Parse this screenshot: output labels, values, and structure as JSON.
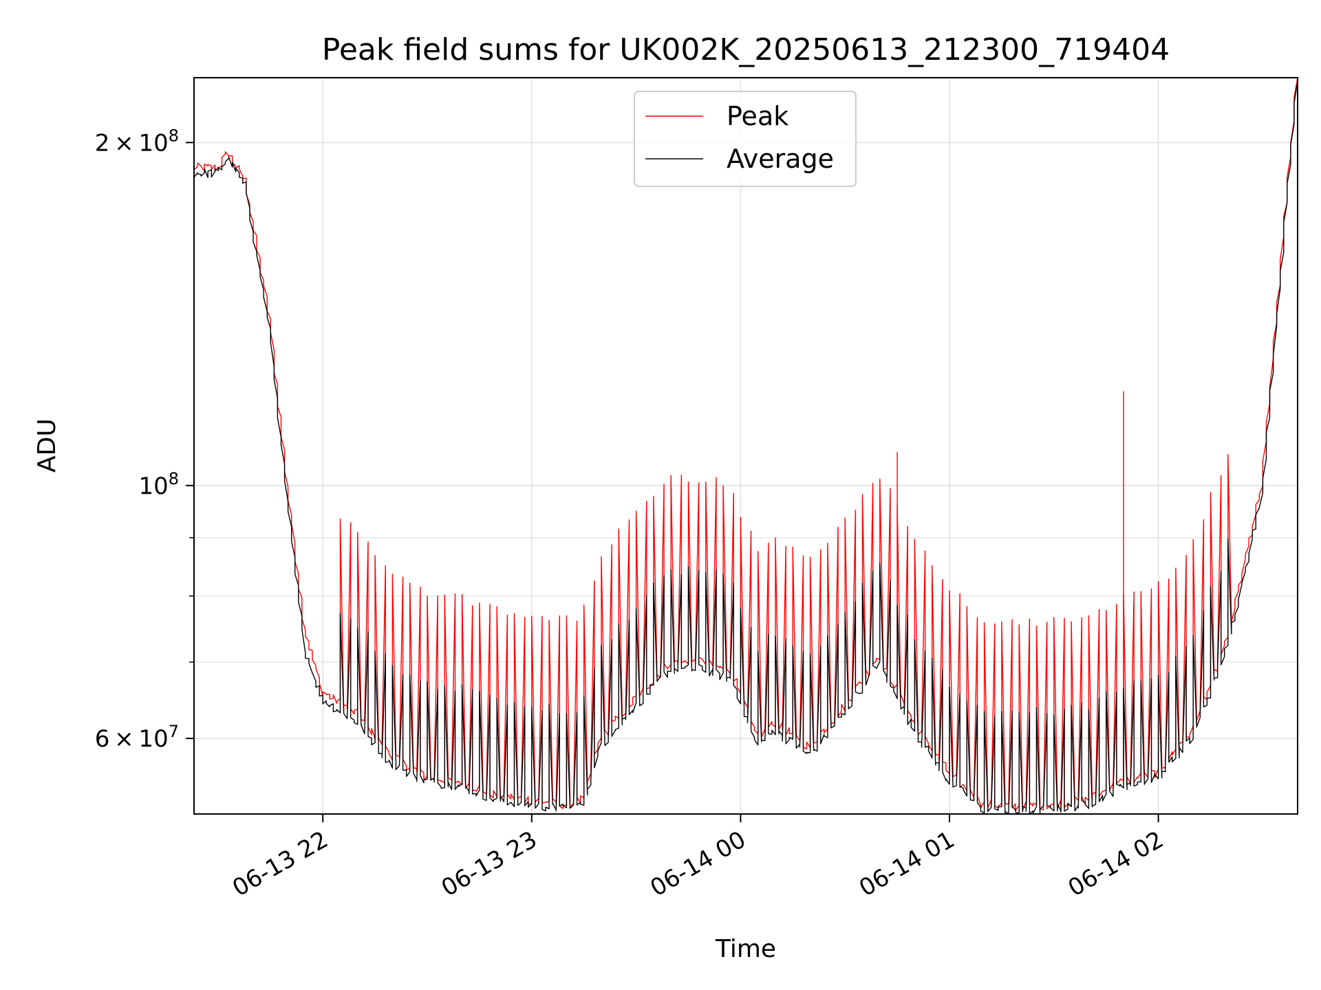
{
  "chart_data": {
    "type": "line",
    "title": "Peak field sums for UK002K_20250613_212300_719404",
    "xlabel": "Time",
    "ylabel": "ADU",
    "x_range": [
      "2025-06-13 21:23",
      "2025-06-14 02:40"
    ],
    "ylim": [
      51500000,
      228000000
    ],
    "y_scale": "log",
    "grid": true,
    "legend_position": "top-center",
    "x_ticks": [
      {
        "t": "2025-06-13 22:00",
        "label": "06-13 22"
      },
      {
        "t": "2025-06-13 23:00",
        "label": "06-13 23"
      },
      {
        "t": "2025-06-14 00:00",
        "label": "06-14 00"
      },
      {
        "t": "2025-06-14 01:00",
        "label": "06-14 01"
      },
      {
        "t": "2025-06-14 02:00",
        "label": "06-14 02"
      }
    ],
    "y_major_ticks": [
      {
        "value": 60000000,
        "mantissa": "6",
        "base": "10",
        "exp": "7"
      },
      {
        "value": 100000000,
        "mantissa": "",
        "base": "10",
        "exp": "8"
      },
      {
        "value": 200000000,
        "mantissa": "2",
        "base": "10",
        "exp": "8"
      }
    ],
    "y_minor_ticks": [
      70000000,
      80000000,
      90000000
    ],
    "series": [
      {
        "name": "Peak",
        "color": "#ff0000",
        "t": [
          "2025-06-13 21:23",
          "2025-06-13 21:30",
          "2025-06-13 21:33",
          "2025-06-13 21:38",
          "2025-06-13 21:45",
          "2025-06-13 21:50",
          "2025-06-13 21:55",
          "2025-06-13 22:00",
          "2025-06-13 22:10",
          "2025-06-13 22:20",
          "2025-06-13 22:30",
          "2025-06-13 22:40",
          "2025-06-13 22:50",
          "2025-06-13 23:00",
          "2025-06-13 23:10",
          "2025-06-13 23:15",
          "2025-06-13 23:20",
          "2025-06-13 23:30",
          "2025-06-13 23:40",
          "2025-06-13 23:50",
          "2025-06-13 23:58",
          "2025-06-14 00:05",
          "2025-06-14 00:10",
          "2025-06-14 00:20",
          "2025-06-14 00:30",
          "2025-06-14 00:40",
          "2025-06-14 00:50",
          "2025-06-14 01:00",
          "2025-06-14 01:10",
          "2025-06-14 01:20",
          "2025-06-14 01:30",
          "2025-06-14 01:40",
          "2025-06-14 01:50",
          "2025-06-14 02:00",
          "2025-06-14 02:10",
          "2025-06-14 02:20",
          "2025-06-14 02:30",
          "2025-06-14 02:40"
        ],
        "values": [
          190000000,
          190000000,
          196000000,
          185000000,
          140000000,
          100000000,
          75000000,
          66000000,
          63000000,
          58000000,
          55500000,
          55000000,
          53500000,
          53000000,
          52500000,
          53000000,
          60000000,
          65000000,
          70000000,
          70000000,
          68500000,
          60000000,
          62000000,
          59000000,
          64000000,
          71000000,
          62000000,
          56000000,
          52500000,
          52300000,
          52500000,
          53000000,
          55000000,
          56000000,
          61000000,
          73000000,
          100000000,
          228000000
        ],
        "spikes": [
          {
            "t": "2025-06-14 00:45",
            "value": 107000000
          },
          {
            "t": "2025-06-14 01:50",
            "value": 121000000
          }
        ]
      },
      {
        "name": "Average",
        "color": "#000000",
        "t": [
          "2025-06-13 21:23",
          "2025-06-13 21:30",
          "2025-06-13 21:33",
          "2025-06-13 21:38",
          "2025-06-13 21:45",
          "2025-06-13 21:50",
          "2025-06-13 21:55",
          "2025-06-13 22:00",
          "2025-06-13 22:10",
          "2025-06-13 22:20",
          "2025-06-13 22:30",
          "2025-06-13 22:40",
          "2025-06-13 22:50",
          "2025-06-13 23:00",
          "2025-06-13 23:10",
          "2025-06-13 23:15",
          "2025-06-13 23:20",
          "2025-06-13 23:30",
          "2025-06-13 23:40",
          "2025-06-13 23:50",
          "2025-06-13 23:58",
          "2025-06-14 00:05",
          "2025-06-14 00:10",
          "2025-06-14 00:20",
          "2025-06-14 00:30",
          "2025-06-14 00:40",
          "2025-06-14 00:50",
          "2025-06-14 01:00",
          "2025-06-14 01:10",
          "2025-06-14 01:20",
          "2025-06-14 01:30",
          "2025-06-14 01:40",
          "2025-06-14 01:50",
          "2025-06-14 02:00",
          "2025-06-14 02:10",
          "2025-06-14 02:20",
          "2025-06-14 02:30",
          "2025-06-14 02:40"
        ],
        "values": [
          188000000,
          188000000,
          194000000,
          183000000,
          137000000,
          97000000,
          72000000,
          65000000,
          62000000,
          57000000,
          55000000,
          54500000,
          53000000,
          52500000,
          52000000,
          52500000,
          59000000,
          64000000,
          69000000,
          69000000,
          67500000,
          59000000,
          61000000,
          58000000,
          63000000,
          70000000,
          61000000,
          55000000,
          52000000,
          51800000,
          52000000,
          52500000,
          54500000,
          55500000,
          60000000,
          72000000,
          98000000,
          226000000
        ]
      }
    ]
  }
}
